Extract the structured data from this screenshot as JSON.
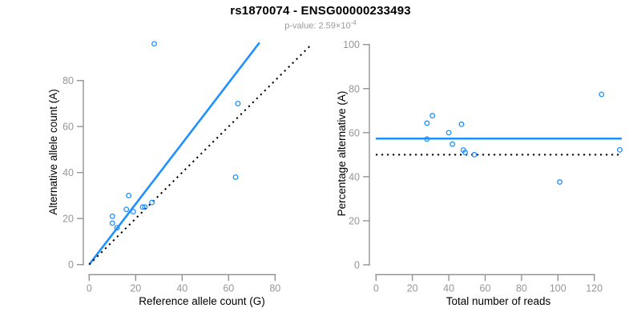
{
  "header": {
    "title": "rs1870074 - ENSG00000233493",
    "subtitle": {
      "label": "p-value: ",
      "value": "2.59",
      "times_ten": "×10",
      "exponent": "-4"
    }
  },
  "colors": {
    "accent_blue": "#1E90FF",
    "axis_gray": "#8c8c8c",
    "tick_label_gray": "#969696",
    "axis_title_black": "#000000",
    "dotted_line_black": "#000000",
    "subtitle_gray": "#9a9a9a"
  },
  "chart_data": [
    {
      "type": "scatter",
      "panel": "left",
      "xlabel": "Reference allele count (G)",
      "ylabel": "Alternative allele count (A)",
      "xticks": [
        0,
        20,
        40,
        60,
        80
      ],
      "yticks": [
        0,
        20,
        40,
        60,
        80
      ],
      "xlim": [
        0,
        96
      ],
      "ylim": [
        0,
        97
      ],
      "grid": false,
      "legend": "none",
      "points": [
        {
          "x": 28,
          "y": 96
        },
        {
          "x": 64,
          "y": 70
        },
        {
          "x": 63,
          "y": 38
        },
        {
          "x": 17,
          "y": 30
        },
        {
          "x": 16,
          "y": 24
        },
        {
          "x": 19,
          "y": 23
        },
        {
          "x": 23,
          "y": 25
        },
        {
          "x": 24,
          "y": 25
        },
        {
          "x": 27,
          "y": 27
        },
        {
          "x": 10,
          "y": 21
        },
        {
          "x": 10,
          "y": 18
        },
        {
          "x": 12,
          "y": 16
        }
      ],
      "lines": [
        {
          "name": "fit-line",
          "style": "solid",
          "color": "#1E90FF",
          "x1": 0,
          "y1": 0,
          "x2": 73.3,
          "y2": 96.5,
          "slope": 1.32
        },
        {
          "name": "identity-line",
          "style": "dotted",
          "color": "#000000",
          "x1": 0,
          "y1": 0,
          "x2": 95.7,
          "y2": 95.7,
          "slope": 1.0
        }
      ]
    },
    {
      "type": "scatter",
      "panel": "right",
      "xlabel": "Total number of reads",
      "ylabel": "Percentage alternative (A)",
      "xticks": [
        0,
        20,
        40,
        60,
        80,
        100,
        120
      ],
      "yticks": [
        0,
        20,
        40,
        60,
        80,
        100
      ],
      "xlim": [
        0,
        135
      ],
      "ylim": [
        0,
        100
      ],
      "grid": false,
      "legend": "none",
      "points": [
        {
          "x": 124,
          "y": 77.4
        },
        {
          "x": 134,
          "y": 52.2
        },
        {
          "x": 101,
          "y": 37.6
        },
        {
          "x": 47,
          "y": 63.8
        },
        {
          "x": 40,
          "y": 60.0
        },
        {
          "x": 42,
          "y": 54.8
        },
        {
          "x": 48,
          "y": 52.1
        },
        {
          "x": 49,
          "y": 51.0
        },
        {
          "x": 54,
          "y": 50.0
        },
        {
          "x": 31,
          "y": 67.7
        },
        {
          "x": 28,
          "y": 64.3
        },
        {
          "x": 28,
          "y": 57.1
        }
      ],
      "lines": [
        {
          "name": "mean-line",
          "style": "solid",
          "color": "#1E90FF",
          "y": 57.3
        },
        {
          "name": "reference-line",
          "style": "dotted",
          "color": "#000000",
          "y": 50
        }
      ]
    }
  ]
}
